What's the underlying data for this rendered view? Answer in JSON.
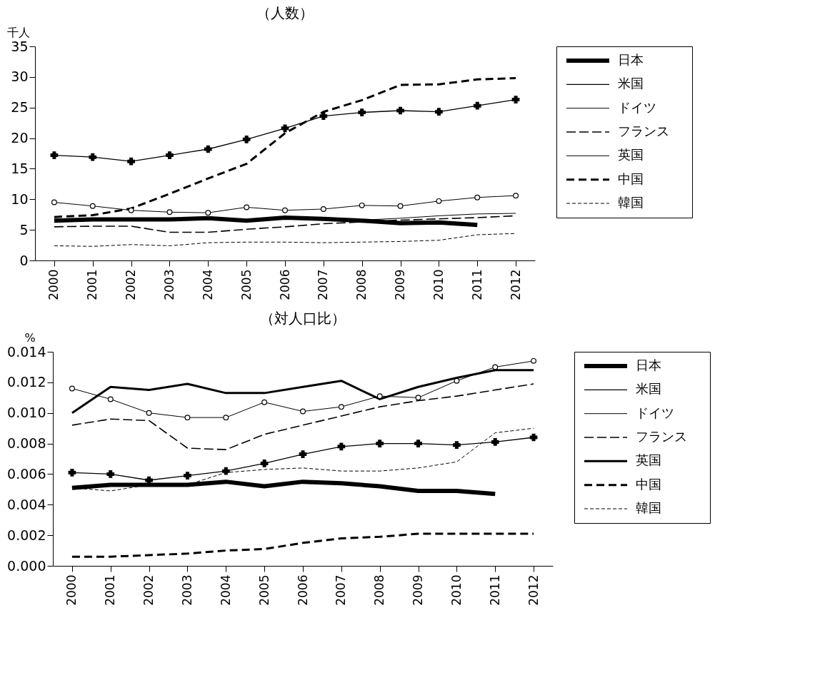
{
  "chart_data": [
    {
      "type": "line",
      "title": "（人数）",
      "ylabel": "千人",
      "categories": [
        "2000",
        "2001",
        "2002",
        "2003",
        "2004",
        "2005",
        "2006",
        "2007",
        "2008",
        "2009",
        "2010",
        "2011",
        "2012"
      ],
      "ylim": [
        0,
        35
      ],
      "yticks": [
        0,
        5,
        10,
        15,
        20,
        25,
        30,
        35
      ],
      "legend": "right",
      "series": [
        {
          "name": "日本",
          "color": "#000000",
          "line_style": "solid",
          "values": [
            6.5,
            6.7,
            6.7,
            6.7,
            6.9,
            6.5,
            7.0,
            6.8,
            6.5,
            6.1,
            6.2,
            5.8,
            null
          ]
        },
        {
          "name": "米国",
          "color": "#000000",
          "line_style": "solid",
          "marker": "cross",
          "values": [
            17.2,
            16.9,
            16.2,
            17.2,
            18.2,
            19.8,
            21.6,
            23.6,
            24.2,
            24.5,
            24.3,
            25.3,
            26.3
          ]
        },
        {
          "name": "ドイツ",
          "color": "#000000",
          "line_style": "solid",
          "marker": "circle",
          "values": [
            9.5,
            8.9,
            8.2,
            7.9,
            7.8,
            8.7,
            8.2,
            8.4,
            9.0,
            8.9,
            9.7,
            10.3,
            10.6
          ]
        },
        {
          "name": "フランス",
          "color": "#000000",
          "line_style": "dashed",
          "values": [
            5.5,
            5.6,
            5.6,
            4.6,
            4.6,
            5.1,
            5.5,
            6.0,
            6.3,
            6.6,
            6.8,
            7.0,
            7.3
          ]
        },
        {
          "name": "英国",
          "color": "#000000",
          "line_style": "solid",
          "values": [
            null,
            null,
            null,
            null,
            null,
            null,
            null,
            null,
            6.6,
            6.9,
            7.3,
            7.6,
            7.7
          ]
        },
        {
          "name": "中国",
          "color": "#000000",
          "line_style": "dashed",
          "values": [
            7.1,
            7.4,
            8.5,
            10.9,
            13.4,
            15.8,
            20.8,
            24.3,
            26.2,
            28.7,
            28.8,
            29.6,
            29.8
          ]
        },
        {
          "name": "韓国",
          "color": "#000000",
          "line_style": "dashed",
          "values": [
            2.4,
            2.3,
            2.6,
            2.4,
            2.9,
            3.0,
            3.0,
            2.9,
            3.0,
            3.1,
            3.3,
            4.2,
            4.4
          ]
        }
      ]
    },
    {
      "type": "line",
      "title": "（対人口比）",
      "ylabel": "%",
      "categories": [
        "2000",
        "2001",
        "2002",
        "2003",
        "2004",
        "2005",
        "2006",
        "2007",
        "2008",
        "2009",
        "2010",
        "2011",
        "2012"
      ],
      "ylim": [
        0,
        0.014
      ],
      "yticks": [
        {
          "value": 0,
          "label": "0.000"
        },
        {
          "value": 0.002,
          "label": "0.002"
        },
        {
          "value": 0.004,
          "label": "0.004"
        },
        {
          "value": 0.006,
          "label": "0.006"
        },
        {
          "value": 0.008,
          "label": "0.008"
        },
        {
          "value": 0.01,
          "label": "0.010"
        },
        {
          "value": 0.012,
          "label": "0.012"
        },
        {
          "value": 0.014,
          "label": "0.014"
        }
      ],
      "legend": "right",
      "series": [
        {
          "name": "日本",
          "color": "#000000",
          "line_style": "solid",
          "values": [
            0.0051,
            0.0053,
            0.0053,
            0.0053,
            0.0055,
            0.0052,
            0.0055,
            0.0054,
            0.0052,
            0.0049,
            0.0049,
            0.0047,
            null
          ]
        },
        {
          "name": "米国",
          "color": "#000000",
          "line_style": "solid",
          "marker": "cross",
          "values": [
            0.0061,
            0.006,
            0.0056,
            0.0059,
            0.0062,
            0.0067,
            0.0073,
            0.0078,
            0.008,
            0.008,
            0.0079,
            0.0081,
            0.0084
          ]
        },
        {
          "name": "ドイツ",
          "color": "#000000",
          "line_style": "solid",
          "marker": "circle",
          "values": [
            0.0116,
            0.0109,
            0.01,
            0.0097,
            0.0097,
            0.0107,
            0.0101,
            0.0104,
            0.0111,
            0.011,
            0.0121,
            0.013,
            0.0134
          ]
        },
        {
          "name": "フランス",
          "color": "#000000",
          "line_style": "dashed",
          "values": [
            0.0092,
            0.0096,
            0.0095,
            0.0077,
            0.0076,
            0.0086,
            0.0092,
            0.0098,
            0.0104,
            0.0108,
            0.0111,
            0.0115,
            0.0119
          ]
        },
        {
          "name": "英国",
          "color": "#000000",
          "line_style": "solid",
          "values": [
            0.01,
            0.0117,
            0.0115,
            0.0119,
            0.0113,
            0.0113,
            0.0117,
            0.0121,
            0.0109,
            0.0117,
            0.0123,
            0.0128,
            0.0128
          ]
        },
        {
          "name": "中国",
          "color": "#000000",
          "line_style": "dashed",
          "values": [
            0.0006,
            0.0006,
            0.0007,
            0.0008,
            0.001,
            0.0011,
            0.0015,
            0.0018,
            0.0019,
            0.0021,
            0.0021,
            0.0021,
            0.0021
          ]
        },
        {
          "name": "韓国",
          "color": "#000000",
          "line_style": "dashed",
          "values": [
            0.0051,
            0.0049,
            0.0053,
            0.0053,
            0.0061,
            0.0063,
            0.0064,
            0.0062,
            0.0062,
            0.0064,
            0.0068,
            0.0087,
            0.009
          ]
        }
      ]
    }
  ]
}
